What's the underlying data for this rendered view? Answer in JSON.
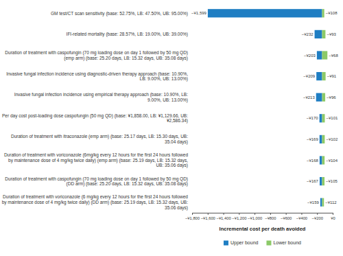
{
  "chart_data": {
    "type": "bar",
    "orientation": "horizontal",
    "categories": [
      "GM test/CT scan sensitivity (base: 52.75%, LB: 47.50%, UB: 95.00%)",
      "IFI-related mortality (base: 28.57%, LB: 19.00%, UB: 39.00%)",
      "Duration of treatment with caspofungin (70 mg loading dose on day 1 followed by 50 mg QD) (emp arm) (base: 25.20 days, LB: 15.32 days, UB: 35.08 days)",
      "Invasive fungal infection incidence using diagnostic-driven therapy approach (base: 10.90%, LB: 9.00%, UB: 13.00%)",
      "Invasive fungal infection incidence using empirical therapy approach (base: 10.90%, LB: 9.00%, UB: 13.00%)",
      "Per day cost post-loading dose caspofungin (50 mg QD) (base: ¥1,858.00, LB: ¥1,129.66, UB: ¥2,586.34)",
      "Duration of treatment with itraconazole (emp arm) (base: 25.17 days, LB: 15.30 days, UB: 35.04 days)",
      "Duration of treatment with voriconazole (6mg/kg every 12 hours for the first 24 hours followed by maintenance dose of 4 mg/kg twice daily) (emp arm) (base: 25.19 days, LB: 15.32 days, UB: 35.06 days)",
      "Duration of treatment with caspofungin (70 mg loading dose on day 1 followed by 50 mg QD) (DD arm) (base: 25.20 days, LB: 15.32 days, UB: 35.08 days)",
      "Duration of treatment with voriconazole (6 mg/kg every 12 hours for the first 24 hours followed by maintenance dose of 4 mg/kg twice daily) (DD arm) (base: 25.19 days, LB: 15.32 days, UB: 35.06 days)"
    ],
    "base_value": -136,
    "series": [
      {
        "name": "Upper bound",
        "color": "#1f7ec3",
        "values": [
          -1599,
          -232,
          -203,
          -209,
          -213,
          -170,
          -169,
          -168,
          -167,
          -159
        ],
        "value_labels": [
          "−¥1,599",
          "−¥232",
          "−¥203",
          "−¥209",
          "−¥213",
          "−¥170",
          "−¥169",
          "−¥168",
          "−¥167",
          "−¥159"
        ]
      },
      {
        "name": "Lower bound",
        "color": "#8cc968",
        "values": [
          -108,
          -93,
          -68,
          -91,
          -96,
          -101,
          -102,
          -104,
          -105,
          -112
        ],
        "value_labels": [
          "−¥108",
          "−¥93",
          "−¥68",
          "−¥91",
          "−¥96",
          "−¥101",
          "−¥102",
          "−¥104",
          "−¥105",
          "−¥112"
        ]
      }
    ],
    "data_labels": true,
    "x_label": "Incremental cost per death avoided",
    "xlim": [
      -1800,
      0
    ],
    "xticks": [
      {
        "value": -1800,
        "label": "−¥1,800"
      },
      {
        "value": -1600,
        "label": "−¥1,600"
      },
      {
        "value": -1400,
        "label": "−¥1,400"
      },
      {
        "value": -1200,
        "label": "−¥1,200"
      },
      {
        "value": -1000,
        "label": "−¥1,000"
      },
      {
        "value": -800,
        "label": "−¥800"
      },
      {
        "value": -600,
        "label": "−¥600"
      },
      {
        "value": -400,
        "label": "−¥400"
      },
      {
        "value": -200,
        "label": "−¥200"
      },
      {
        "value": 0,
        "label": "¥0"
      }
    ],
    "legend": "bottom"
  }
}
